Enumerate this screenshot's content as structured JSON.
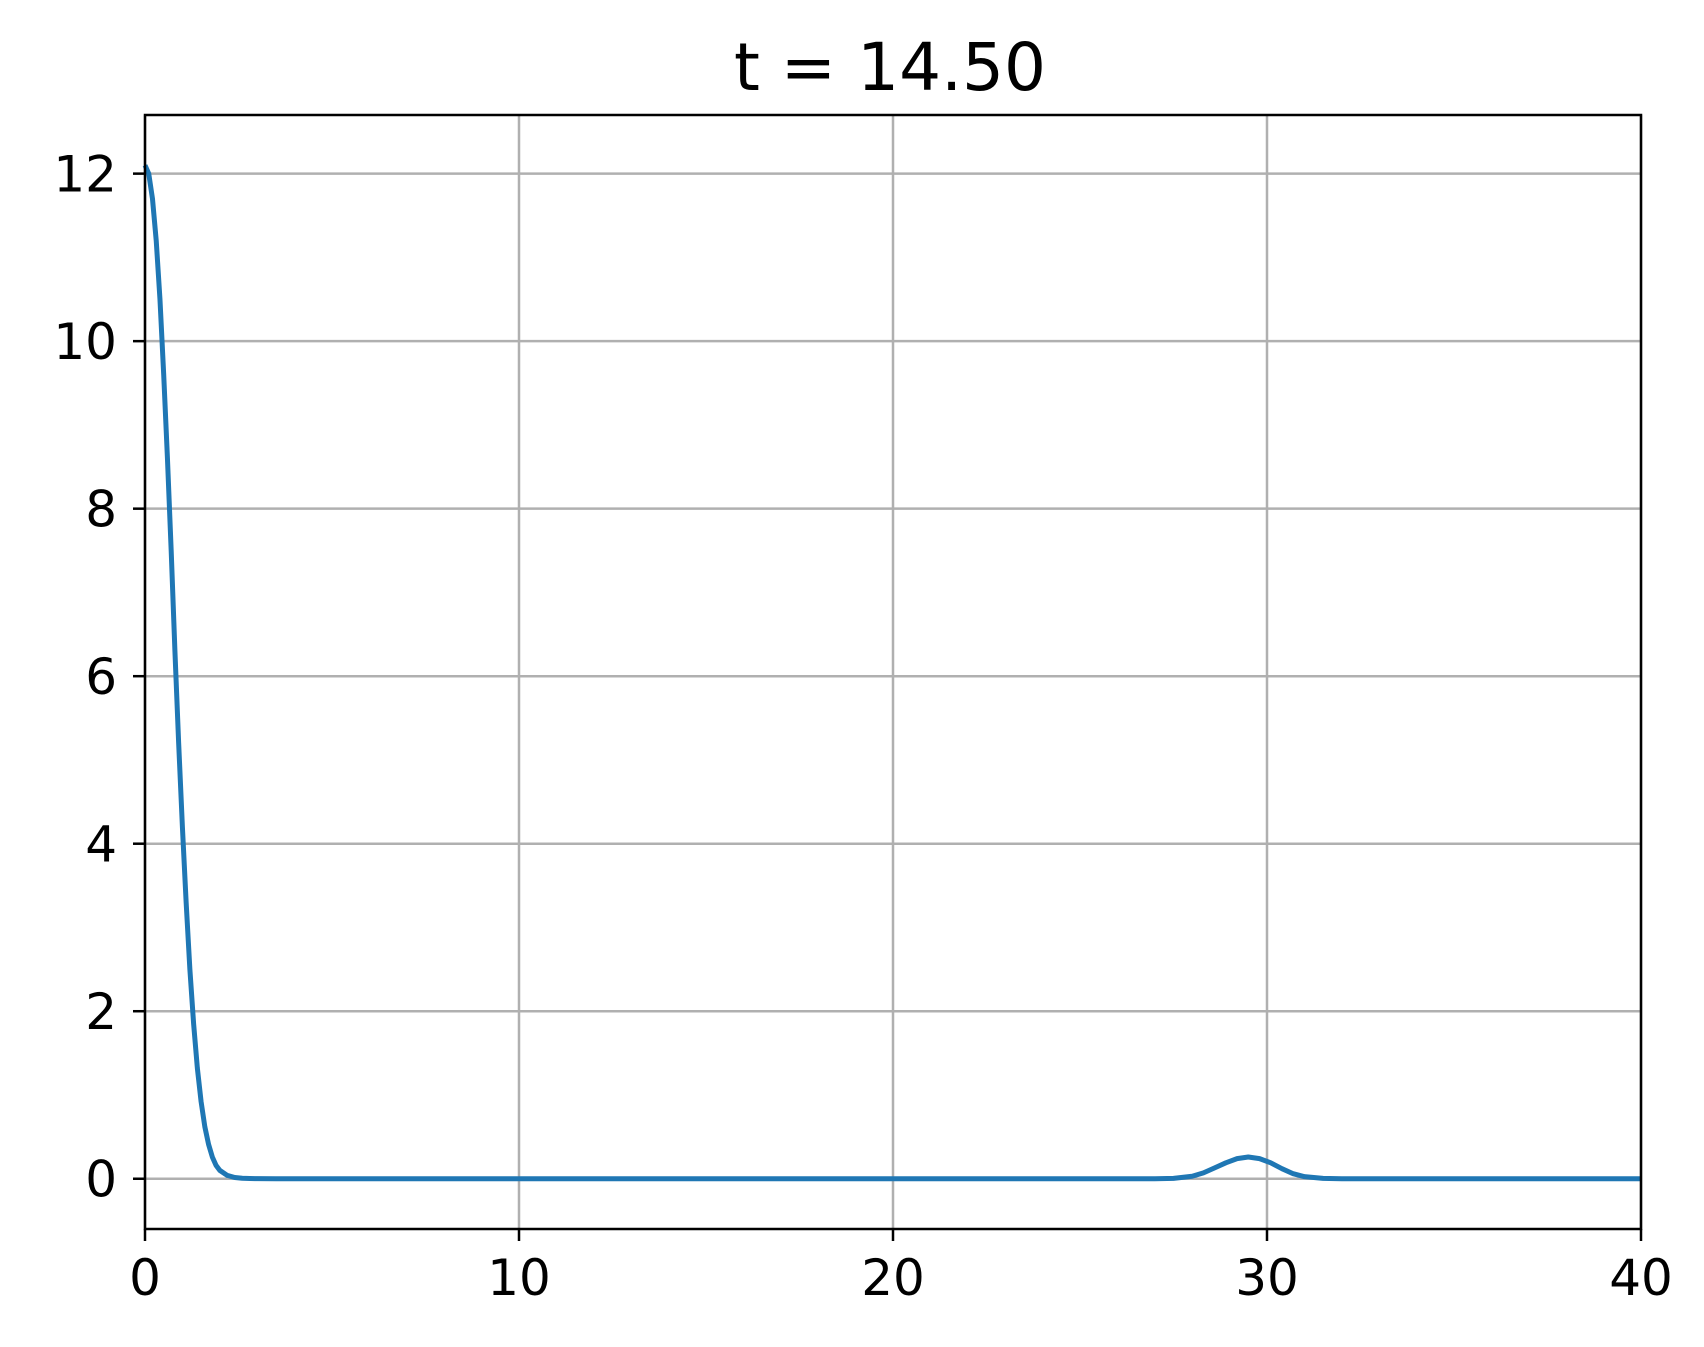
{
  "chart_data": {
    "type": "line",
    "title": "t = 14.50",
    "xlabel": "",
    "ylabel": "",
    "xlim": [
      0,
      40
    ],
    "ylim": [
      -0.6,
      12.7
    ],
    "xticks": [
      0,
      10,
      20,
      30,
      40
    ],
    "xtick_labels": [
      "0",
      "10",
      "20",
      "30",
      "40"
    ],
    "yticks": [
      0,
      2,
      4,
      6,
      8,
      10,
      12
    ],
    "ytick_labels": [
      "0",
      "2",
      "4",
      "6",
      "8",
      "10",
      "12"
    ],
    "grid": true,
    "legend": "none",
    "series": [
      {
        "color": "#1f77b4",
        "x": [
          0,
          0.1,
          0.2,
          0.3,
          0.4,
          0.5,
          0.6,
          0.7,
          0.8,
          0.9,
          1.0,
          1.1,
          1.2,
          1.3,
          1.4,
          1.5,
          1.6,
          1.7,
          1.8,
          1.9,
          2.0,
          2.2,
          2.4,
          2.6,
          2.8,
          3.0,
          3.5,
          4.0,
          10,
          20,
          27.0,
          27.5,
          28.0,
          28.3,
          28.6,
          28.9,
          29.2,
          29.5,
          29.8,
          30.1,
          30.4,
          30.7,
          31.0,
          31.5,
          32.0,
          35,
          40
        ],
        "y": [
          12.1,
          12.0,
          11.7,
          11.2,
          10.5,
          9.6,
          8.6,
          7.5,
          6.3,
          5.2,
          4.2,
          3.3,
          2.5,
          1.85,
          1.32,
          0.92,
          0.62,
          0.41,
          0.26,
          0.16,
          0.1,
          0.04,
          0.015,
          0.006,
          0.003,
          0.001,
          0.0,
          0.0,
          0.0,
          0.0,
          0.0,
          0.005,
          0.03,
          0.07,
          0.13,
          0.19,
          0.24,
          0.26,
          0.24,
          0.19,
          0.12,
          0.06,
          0.025,
          0.005,
          0.0,
          0.0,
          0.0
        ]
      }
    ]
  }
}
